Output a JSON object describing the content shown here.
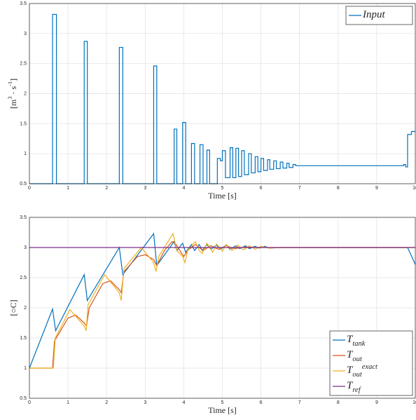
{
  "chart_data": [
    {
      "type": "line",
      "xlabel": "Time [s]",
      "ylabel": "[m^{3} · s^{-1}]",
      "xlim": [
        0,
        10
      ],
      "ylim": [
        0.5,
        3.5
      ],
      "xticks": [
        0,
        1,
        2,
        3,
        4,
        5,
        6,
        7,
        8,
        9,
        10
      ],
      "yticks": [
        0.5,
        1,
        1.5,
        2,
        2.5,
        3,
        3.5
      ],
      "grid": true,
      "legend": "top-right",
      "series": [
        {
          "name": "Input",
          "color": "#0072bd",
          "x": [
            0,
            0.6,
            0.6,
            0.7,
            0.7,
            1.42,
            1.42,
            1.5,
            1.5,
            2.33,
            2.33,
            2.42,
            2.42,
            3.22,
            3.22,
            3.3,
            3.3,
            3.75,
            3.75,
            3.82,
            3.82,
            3.97,
            3.97,
            4.05,
            4.05,
            4.2,
            4.2,
            4.28,
            4.28,
            4.42,
            4.42,
            4.5,
            4.5,
            4.6,
            4.6,
            4.67,
            4.67,
            4.87,
            4.87,
            4.95,
            4.95,
            5.0,
            5.0,
            5.08,
            5.08,
            5.2,
            5.2,
            5.27,
            5.27,
            5.35,
            5.35,
            5.42,
            5.42,
            5.5,
            5.5,
            5.57,
            5.57,
            5.68,
            5.68,
            5.75,
            5.75,
            5.85,
            5.85,
            5.92,
            5.92,
            6.0,
            6.0,
            6.07,
            6.07,
            6.17,
            6.17,
            6.23,
            6.23,
            6.33,
            6.33,
            6.4,
            6.4,
            6.5,
            6.5,
            6.57,
            6.57,
            6.67,
            6.67,
            6.73,
            6.73,
            6.83,
            6.83,
            6.9,
            6.9,
            9.7,
            9.7,
            9.75,
            9.75,
            9.8,
            9.8,
            9.9,
            9.9,
            10
          ],
          "values": [
            0.5,
            0.5,
            3.32,
            3.32,
            0.5,
            0.5,
            2.87,
            2.87,
            0.5,
            0.5,
            2.77,
            2.77,
            0.5,
            0.5,
            2.46,
            2.46,
            0.5,
            0.5,
            1.41,
            1.41,
            0.5,
            0.5,
            1.52,
            1.52,
            0.5,
            0.5,
            1.17,
            1.17,
            0.5,
            0.5,
            1.15,
            1.15,
            0.5,
            0.5,
            1.06,
            1.06,
            0.5,
            0.5,
            0.92,
            0.92,
            0.88,
            0.88,
            1.05,
            1.05,
            0.6,
            0.6,
            1.1,
            1.1,
            0.6,
            0.6,
            1.09,
            1.09,
            0.62,
            0.62,
            1.05,
            1.05,
            0.65,
            0.65,
            1.0,
            1.0,
            0.68,
            0.68,
            0.95,
            0.95,
            0.7,
            0.7,
            0.92,
            0.92,
            0.72,
            0.72,
            0.9,
            0.9,
            0.74,
            0.74,
            0.88,
            0.88,
            0.75,
            0.75,
            0.86,
            0.86,
            0.76,
            0.76,
            0.84,
            0.84,
            0.77,
            0.77,
            0.82,
            0.82,
            0.8,
            0.8,
            0.82,
            0.82,
            0.78,
            0.78,
            1.32,
            1.32,
            1.37,
            1.37
          ]
        }
      ]
    },
    {
      "type": "line",
      "xlabel": "Time [s]",
      "ylabel": "[○C]",
      "xlim": [
        0,
        10
      ],
      "ylim": [
        0.5,
        3.5
      ],
      "xticks": [
        0,
        1,
        2,
        3,
        4,
        5,
        6,
        7,
        8,
        9,
        10
      ],
      "yticks": [
        0.5,
        1,
        1.5,
        2,
        2.5,
        3,
        3.5
      ],
      "grid": true,
      "legend": "bottom-right",
      "series": [
        {
          "name": "T_{tank}",
          "color": "#0072bd",
          "x": [
            0,
            0.6,
            0.68,
            1.42,
            1.5,
            2.33,
            2.42,
            3.22,
            3.3,
            3.75,
            3.82,
            3.97,
            4.05,
            4.2,
            4.28,
            4.4,
            4.48,
            4.6,
            4.7,
            4.85,
            4.95,
            5.1,
            5.2,
            5.35,
            5.45,
            5.6,
            5.7,
            5.85,
            5.95,
            6.1,
            6.2,
            6.5,
            9.8,
            10
          ],
          "values": [
            1,
            1.98,
            1.62,
            2.55,
            2.12,
            3.0,
            2.55,
            3.23,
            2.7,
            3.1,
            2.95,
            3.07,
            2.92,
            3.05,
            2.95,
            3.05,
            2.95,
            3.05,
            2.97,
            3.04,
            2.97,
            3.04,
            2.97,
            3.03,
            2.98,
            3.03,
            2.98,
            3.02,
            2.99,
            3.02,
            2.99,
            3.0,
            3.0,
            2.72
          ]
        },
        {
          "name": "T_{out}",
          "color": "#d95319",
          "x": [
            0,
            0.6,
            0.65,
            1.0,
            1.2,
            1.42,
            1.48,
            1.55,
            1.9,
            2.1,
            2.33,
            2.38,
            2.45,
            2.8,
            3.0,
            3.22,
            3.3,
            3.5,
            3.7,
            3.8,
            4.0,
            4.1,
            4.3,
            4.5,
            4.7,
            4.9,
            5.1,
            5.3,
            5.6,
            6.0,
            10
          ],
          "values": [
            1,
            1,
            1.45,
            1.83,
            1.88,
            1.75,
            1.7,
            2.0,
            2.4,
            2.45,
            2.3,
            2.25,
            2.6,
            2.85,
            2.88,
            2.8,
            2.7,
            2.95,
            3.1,
            3.05,
            2.85,
            2.95,
            3.05,
            2.95,
            3.03,
            2.97,
            3.03,
            2.98,
            3.01,
            3.0,
            3.0
          ]
        },
        {
          "name": "T_{out}^{exact}",
          "color": "#edb120",
          "x": [
            0,
            0.62,
            0.67,
            1.05,
            1.42,
            1.47,
            1.52,
            1.95,
            2.33,
            2.38,
            2.45,
            2.9,
            3.22,
            3.28,
            3.35,
            3.72,
            3.82,
            3.97,
            4.03,
            4.1,
            4.3,
            4.4,
            4.48,
            4.6,
            4.75,
            4.85,
            5.0,
            5.1,
            5.25,
            5.4,
            5.55,
            5.7,
            5.85,
            6.0,
            6.2,
            6.5,
            10
          ],
          "values": [
            1,
            1,
            1.5,
            1.97,
            1.7,
            1.62,
            2.05,
            2.55,
            2.25,
            2.12,
            2.65,
            3.0,
            2.75,
            2.6,
            2.85,
            3.23,
            2.95,
            2.85,
            2.75,
            2.95,
            3.1,
            2.95,
            2.9,
            3.07,
            2.92,
            3.06,
            2.94,
            3.05,
            2.95,
            3.04,
            2.96,
            3.03,
            2.97,
            3.02,
            2.99,
            3.0,
            3.0
          ]
        },
        {
          "name": "T_{ref}",
          "color": "#7e2f8e",
          "x": [
            0,
            10
          ],
          "values": [
            3,
            3
          ]
        }
      ]
    }
  ]
}
